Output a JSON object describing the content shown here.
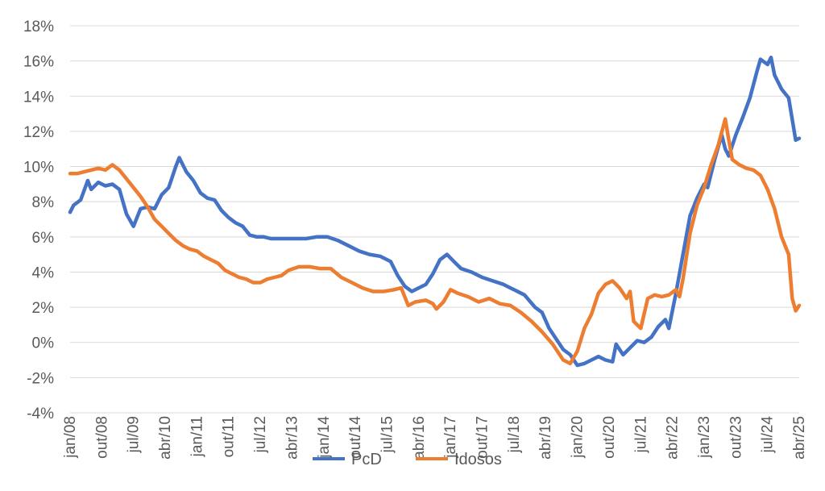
{
  "chart_data": {
    "type": "line",
    "title": "",
    "xlabel": "",
    "ylabel": "",
    "ylim": [
      -4,
      18
    ],
    "y_ticks": [
      -4,
      -2,
      0,
      2,
      4,
      6,
      8,
      10,
      12,
      14,
      16,
      18
    ],
    "y_tick_labels": [
      "-4%",
      "-2%",
      "0%",
      "2%",
      "4%",
      "6%",
      "8%",
      "10%",
      "12%",
      "14%",
      "16%",
      "18%"
    ],
    "x_range": [
      "2008-01",
      "2025-04"
    ],
    "x_tick_labels": [
      "jan/08",
      "out/08",
      "jul/09",
      "abr/10",
      "jan/11",
      "out/11",
      "jul/12",
      "abr/13",
      "jan/14",
      "out/14",
      "jul/15",
      "abr/16",
      "jan/17",
      "out/17",
      "jul/18",
      "abr/19",
      "jan/20",
      "out/20",
      "jul/21",
      "abr/22",
      "jan/23",
      "out/23",
      "jul/24",
      "abr/25"
    ],
    "grid": true,
    "legend_position": "bottom",
    "series": [
      {
        "name": "PcD",
        "color": "#4472c4",
        "points": [
          [
            "2008-01",
            7.4
          ],
          [
            "2008-02",
            7.8
          ],
          [
            "2008-04",
            8.1
          ],
          [
            "2008-06",
            9.2
          ],
          [
            "2008-07",
            8.7
          ],
          [
            "2008-09",
            9.1
          ],
          [
            "2008-11",
            8.9
          ],
          [
            "2009-01",
            9.0
          ],
          [
            "2009-03",
            8.7
          ],
          [
            "2009-05",
            7.3
          ],
          [
            "2009-07",
            6.6
          ],
          [
            "2009-09",
            7.6
          ],
          [
            "2009-11",
            7.7
          ],
          [
            "2010-01",
            7.6
          ],
          [
            "2010-03",
            8.4
          ],
          [
            "2010-05",
            8.8
          ],
          [
            "2010-07",
            10.0
          ],
          [
            "2010-08",
            10.5
          ],
          [
            "2010-10",
            9.7
          ],
          [
            "2010-12",
            9.2
          ],
          [
            "2011-02",
            8.5
          ],
          [
            "2011-04",
            8.2
          ],
          [
            "2011-06",
            8.1
          ],
          [
            "2011-08",
            7.5
          ],
          [
            "2011-10",
            7.1
          ],
          [
            "2011-12",
            6.8
          ],
          [
            "2012-02",
            6.6
          ],
          [
            "2012-04",
            6.1
          ],
          [
            "2012-06",
            6.0
          ],
          [
            "2012-08",
            6.0
          ],
          [
            "2012-10",
            5.9
          ],
          [
            "2012-12",
            5.9
          ],
          [
            "2013-02",
            5.9
          ],
          [
            "2013-05",
            5.9
          ],
          [
            "2013-08",
            5.9
          ],
          [
            "2013-11",
            6.0
          ],
          [
            "2014-02",
            6.0
          ],
          [
            "2014-05",
            5.8
          ],
          [
            "2014-08",
            5.5
          ],
          [
            "2014-11",
            5.2
          ],
          [
            "2015-02",
            5.0
          ],
          [
            "2015-05",
            4.9
          ],
          [
            "2015-08",
            4.6
          ],
          [
            "2015-10",
            3.8
          ],
          [
            "2015-12",
            3.2
          ],
          [
            "2016-02",
            2.9
          ],
          [
            "2016-04",
            3.1
          ],
          [
            "2016-06",
            3.3
          ],
          [
            "2016-08",
            3.9
          ],
          [
            "2016-10",
            4.7
          ],
          [
            "2016-12",
            5.0
          ],
          [
            "2017-02",
            4.6
          ],
          [
            "2017-04",
            4.2
          ],
          [
            "2017-07",
            4.0
          ],
          [
            "2017-10",
            3.7
          ],
          [
            "2018-01",
            3.5
          ],
          [
            "2018-04",
            3.3
          ],
          [
            "2018-07",
            3.0
          ],
          [
            "2018-10",
            2.7
          ],
          [
            "2019-01",
            2.0
          ],
          [
            "2019-03",
            1.7
          ],
          [
            "2019-05",
            0.8
          ],
          [
            "2019-07",
            0.2
          ],
          [
            "2019-09",
            -0.4
          ],
          [
            "2019-11",
            -0.7
          ],
          [
            "2020-01",
            -1.3
          ],
          [
            "2020-03",
            -1.2
          ],
          [
            "2020-05",
            -1.0
          ],
          [
            "2020-07",
            -0.8
          ],
          [
            "2020-09",
            -1.0
          ],
          [
            "2020-11",
            -1.1
          ],
          [
            "2020-12",
            -0.1
          ],
          [
            "2021-02",
            -0.7
          ],
          [
            "2021-04",
            -0.3
          ],
          [
            "2021-06",
            0.1
          ],
          [
            "2021-08",
            0.0
          ],
          [
            "2021-10",
            0.3
          ],
          [
            "2021-12",
            0.9
          ],
          [
            "2022-02",
            1.3
          ],
          [
            "2022-03",
            0.8
          ],
          [
            "2022-05",
            2.8
          ],
          [
            "2022-07",
            5.0
          ],
          [
            "2022-09",
            7.2
          ],
          [
            "2022-11",
            8.2
          ],
          [
            "2023-01",
            9.0
          ],
          [
            "2023-02",
            8.8
          ],
          [
            "2023-04",
            10.4
          ],
          [
            "2023-06",
            11.8
          ],
          [
            "2023-07",
            11.0
          ],
          [
            "2023-08",
            10.6
          ],
          [
            "2023-10",
            11.8
          ],
          [
            "2023-12",
            12.8
          ],
          [
            "2024-02",
            13.9
          ],
          [
            "2024-04",
            15.4
          ],
          [
            "2024-05",
            16.1
          ],
          [
            "2024-07",
            15.8
          ],
          [
            "2024-08",
            16.2
          ],
          [
            "2024-09",
            15.2
          ],
          [
            "2024-11",
            14.4
          ],
          [
            "2025-01",
            13.9
          ],
          [
            "2025-03",
            11.5
          ],
          [
            "2025-04",
            11.6
          ]
        ]
      },
      {
        "name": "Idosos",
        "color": "#ed7d31",
        "points": [
          [
            "2008-01",
            9.6
          ],
          [
            "2008-03",
            9.6
          ],
          [
            "2008-05",
            9.7
          ],
          [
            "2008-07",
            9.8
          ],
          [
            "2008-09",
            9.9
          ],
          [
            "2008-11",
            9.8
          ],
          [
            "2009-01",
            10.1
          ],
          [
            "2009-03",
            9.8
          ],
          [
            "2009-05",
            9.3
          ],
          [
            "2009-07",
            8.8
          ],
          [
            "2009-09",
            8.3
          ],
          [
            "2009-11",
            7.7
          ],
          [
            "2010-01",
            7.0
          ],
          [
            "2010-03",
            6.6
          ],
          [
            "2010-05",
            6.2
          ],
          [
            "2010-07",
            5.8
          ],
          [
            "2010-09",
            5.5
          ],
          [
            "2010-11",
            5.3
          ],
          [
            "2011-01",
            5.2
          ],
          [
            "2011-03",
            4.9
          ],
          [
            "2011-05",
            4.7
          ],
          [
            "2011-07",
            4.5
          ],
          [
            "2011-09",
            4.1
          ],
          [
            "2011-11",
            3.9
          ],
          [
            "2012-01",
            3.7
          ],
          [
            "2012-03",
            3.6
          ],
          [
            "2012-05",
            3.4
          ],
          [
            "2012-07",
            3.4
          ],
          [
            "2012-09",
            3.6
          ],
          [
            "2012-11",
            3.7
          ],
          [
            "2013-01",
            3.8
          ],
          [
            "2013-03",
            4.1
          ],
          [
            "2013-06",
            4.3
          ],
          [
            "2013-09",
            4.3
          ],
          [
            "2013-12",
            4.2
          ],
          [
            "2014-03",
            4.2
          ],
          [
            "2014-06",
            3.7
          ],
          [
            "2014-09",
            3.4
          ],
          [
            "2014-12",
            3.1
          ],
          [
            "2015-03",
            2.9
          ],
          [
            "2015-06",
            2.9
          ],
          [
            "2015-09",
            3.0
          ],
          [
            "2015-11",
            3.1
          ],
          [
            "2016-01",
            2.1
          ],
          [
            "2016-03",
            2.3
          ],
          [
            "2016-06",
            2.4
          ],
          [
            "2016-08",
            2.2
          ],
          [
            "2016-09",
            1.9
          ],
          [
            "2016-11",
            2.3
          ],
          [
            "2017-01",
            3.0
          ],
          [
            "2017-03",
            2.8
          ],
          [
            "2017-06",
            2.6
          ],
          [
            "2017-09",
            2.3
          ],
          [
            "2017-12",
            2.5
          ],
          [
            "2018-03",
            2.2
          ],
          [
            "2018-06",
            2.1
          ],
          [
            "2018-09",
            1.7
          ],
          [
            "2018-12",
            1.2
          ],
          [
            "2019-03",
            0.6
          ],
          [
            "2019-06",
            -0.1
          ],
          [
            "2019-09",
            -1.0
          ],
          [
            "2019-11",
            -1.2
          ],
          [
            "2020-01",
            -0.5
          ],
          [
            "2020-03",
            0.8
          ],
          [
            "2020-05",
            1.6
          ],
          [
            "2020-07",
            2.8
          ],
          [
            "2020-09",
            3.3
          ],
          [
            "2020-11",
            3.5
          ],
          [
            "2021-01",
            3.1
          ],
          [
            "2021-03",
            2.5
          ],
          [
            "2021-04",
            2.9
          ],
          [
            "2021-05",
            1.2
          ],
          [
            "2021-07",
            0.8
          ],
          [
            "2021-09",
            2.5
          ],
          [
            "2021-11",
            2.7
          ],
          [
            "2022-01",
            2.6
          ],
          [
            "2022-03",
            2.7
          ],
          [
            "2022-05",
            3.0
          ],
          [
            "2022-06",
            2.6
          ],
          [
            "2022-07",
            3.6
          ],
          [
            "2022-09",
            6.2
          ],
          [
            "2022-11",
            7.8
          ],
          [
            "2023-01",
            8.8
          ],
          [
            "2023-03",
            10.1
          ],
          [
            "2023-05",
            11.2
          ],
          [
            "2023-07",
            12.7
          ],
          [
            "2023-08",
            11.5
          ],
          [
            "2023-09",
            10.4
          ],
          [
            "2023-11",
            10.1
          ],
          [
            "2024-01",
            9.9
          ],
          [
            "2024-03",
            9.8
          ],
          [
            "2024-05",
            9.5
          ],
          [
            "2024-07",
            8.7
          ],
          [
            "2024-09",
            7.6
          ],
          [
            "2024-11",
            6.0
          ],
          [
            "2025-01",
            5.0
          ],
          [
            "2025-02",
            2.5
          ],
          [
            "2025-03",
            1.8
          ],
          [
            "2025-04",
            2.1
          ]
        ]
      }
    ]
  }
}
